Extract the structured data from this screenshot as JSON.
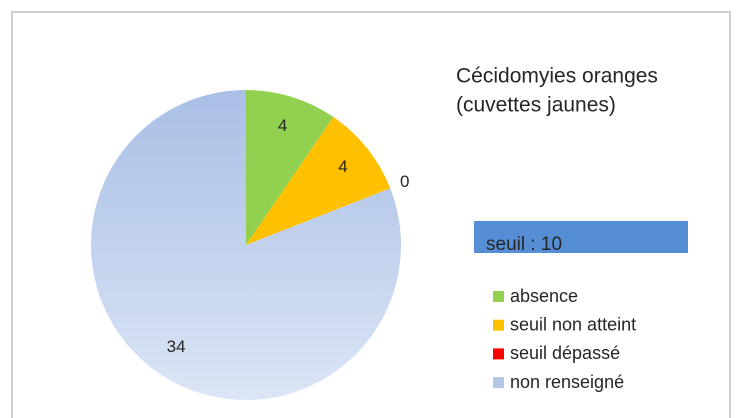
{
  "chart_data": {
    "type": "pie",
    "title": "Cécidomyies oranges",
    "subtitle": "(cuvettes jaunes)",
    "annotation": "seuil : 10",
    "categories": [
      "absence",
      "seuil non atteint",
      "seuil dépassé",
      "non renseigné"
    ],
    "values": [
      4,
      4,
      0,
      34
    ],
    "colors": [
      "#92d050",
      "#ffc000",
      "#ff0000",
      "#b4c7e7"
    ],
    "legend": "right"
  }
}
